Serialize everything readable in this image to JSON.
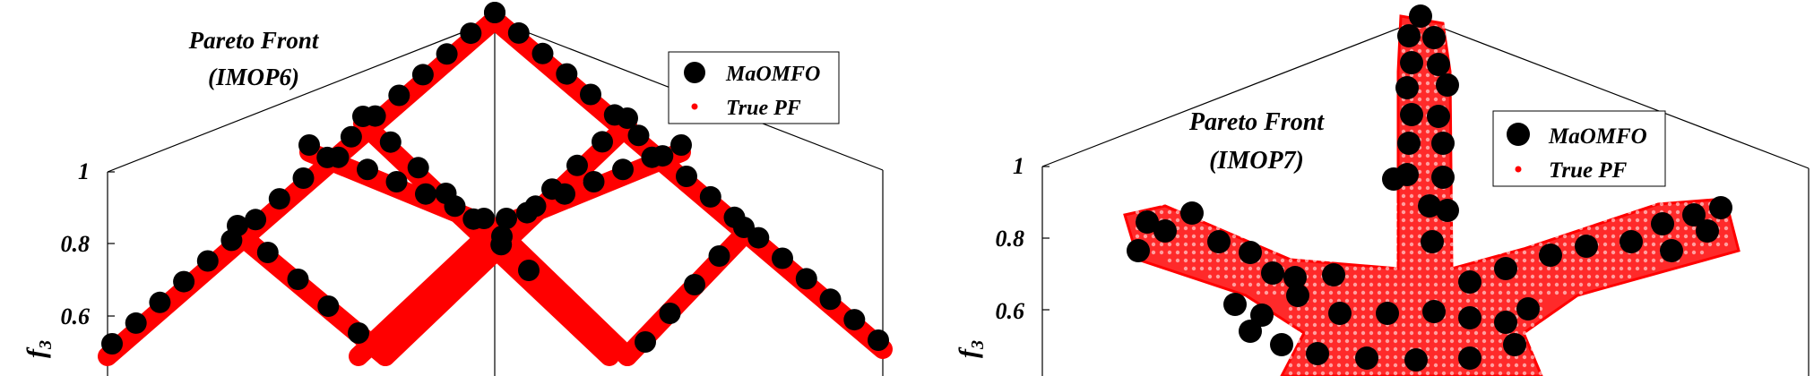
{
  "chart_data": [
    {
      "type": "scatter",
      "title": "Pareto Front",
      "subtitle": "(IMOP6)",
      "zlabel": "f",
      "zlabel_sub": "3",
      "z_ticks": [
        "1",
        "0.8",
        "0.6"
      ],
      "series": [
        {
          "name": "MaOMFO",
          "color": "#000000",
          "marker": "large-dot"
        },
        {
          "name": "True PF",
          "color": "#ff0000",
          "marker": "small-dot"
        }
      ],
      "legend_position": "top-right",
      "grid": false
    },
    {
      "type": "scatter",
      "title": "Pareto Front",
      "subtitle": "(IMOP7)",
      "zlabel": "f",
      "zlabel_sub": "3",
      "z_ticks": [
        "1",
        "0.8",
        "0.6"
      ],
      "series": [
        {
          "name": "MaOMFO",
          "color": "#000000",
          "marker": "large-dot"
        },
        {
          "name": "True PF",
          "color": "#ff0000",
          "marker": "small-dot"
        }
      ],
      "legend_position": "top-right",
      "grid": false
    }
  ]
}
